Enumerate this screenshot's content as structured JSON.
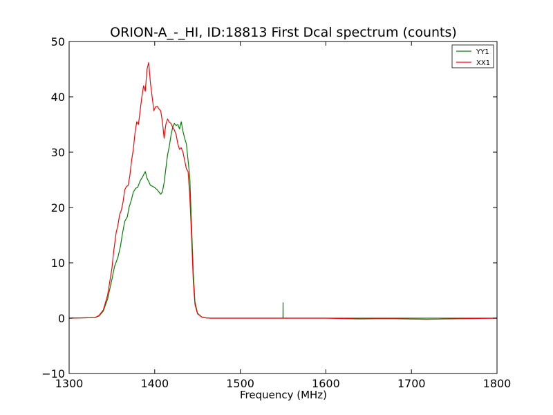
{
  "chart_data": {
    "type": "line",
    "title": "ORION-A_-_HI, ID:18813 First Dcal spectrum (counts)",
    "xlabel": "Frequency (MHz)",
    "ylabel": "",
    "xlim": [
      1300,
      1800
    ],
    "ylim": [
      -10,
      50
    ],
    "xticks": [
      1300,
      1400,
      1500,
      1600,
      1700,
      1800
    ],
    "yticks": [
      -10,
      0,
      10,
      20,
      30,
      40,
      50
    ],
    "xtick_labels": [
      "1300",
      "1400",
      "1500",
      "1600",
      "1700",
      "1800"
    ],
    "ytick_labels": [
      "−10",
      "0",
      "10",
      "20",
      "30",
      "40",
      "50"
    ],
    "grid": false,
    "legend_position": "top-right",
    "series": [
      {
        "name": "YY1",
        "color": "#008000",
        "x": [
          1300,
          1330,
          1335,
          1340,
          1345,
          1350,
          1353,
          1357,
          1360,
          1362,
          1365,
          1368,
          1370,
          1373,
          1375,
          1378,
          1380,
          1383,
          1386,
          1389,
          1391,
          1393,
          1395,
          1398,
          1400,
          1403,
          1405,
          1407,
          1409,
          1411,
          1413,
          1415,
          1417,
          1419,
          1421,
          1423,
          1425,
          1427,
          1429,
          1431,
          1433,
          1435,
          1437,
          1439,
          1441,
          1443,
          1445,
          1447,
          1450,
          1455,
          1460,
          1465,
          1470,
          1480,
          1500,
          1549.9,
          1550,
          1550.1,
          1600,
          1650,
          1700,
          1800
        ],
        "y": [
          0,
          0.1,
          0.4,
          1.3,
          3.5,
          7,
          9.3,
          11,
          13,
          15,
          17.5,
          18.3,
          20,
          21.5,
          22.8,
          23.5,
          23.6,
          24.8,
          25.6,
          26.5,
          25.3,
          24.7,
          24,
          23.8,
          23.6,
          23.2,
          22.8,
          22.4,
          22.8,
          24.5,
          27,
          29.5,
          31,
          33,
          34.5,
          35.2,
          34.8,
          35,
          34.2,
          35.5,
          33.8,
          32.5,
          31.5,
          28.5,
          25.5,
          17,
          8.5,
          3,
          0.9,
          0.2,
          0.05,
          0,
          0,
          0,
          0,
          0,
          2.8,
          0,
          0,
          0,
          0,
          0
        ]
      },
      {
        "name": "XX1",
        "color": "#ff0000",
        "x": [
          1300,
          1330,
          1335,
          1340,
          1345,
          1350,
          1352,
          1355,
          1357,
          1359,
          1361,
          1363,
          1365,
          1367,
          1369,
          1371,
          1373,
          1375,
          1377,
          1379,
          1381,
          1383,
          1385,
          1387,
          1389,
          1391,
          1393,
          1395,
          1397,
          1399,
          1401,
          1403,
          1405,
          1407,
          1409,
          1411,
          1413,
          1415,
          1417,
          1419,
          1421,
          1423,
          1425,
          1427,
          1429,
          1431,
          1433,
          1435,
          1437,
          1439,
          1441,
          1443,
          1445,
          1447,
          1450,
          1455,
          1460,
          1465,
          1470,
          1480,
          1500,
          1550,
          1600,
          1640,
          1660,
          1680,
          1717,
          1800
        ],
        "y": [
          0,
          0.1,
          0.5,
          1.5,
          4.2,
          9,
          12,
          15.5,
          16.8,
          18.7,
          19.5,
          21,
          23.2,
          23.8,
          24,
          25.8,
          28.5,
          30.5,
          33.5,
          35.5,
          35,
          37.5,
          40,
          42,
          41,
          45,
          46.2,
          42.5,
          40,
          37.5,
          38.2,
          38.3,
          37.8,
          37.5,
          35.5,
          32.5,
          35,
          36,
          35.4,
          35.2,
          34.5,
          34,
          33.2,
          31.5,
          30.5,
          30.8,
          30,
          28.5,
          27,
          26.5,
          22,
          15,
          7,
          2.5,
          0.8,
          0.2,
          0.05,
          0,
          0,
          0,
          0,
          0,
          0,
          -0.15,
          -0.1,
          -0.1,
          -0.2,
          0
        ]
      }
    ]
  }
}
